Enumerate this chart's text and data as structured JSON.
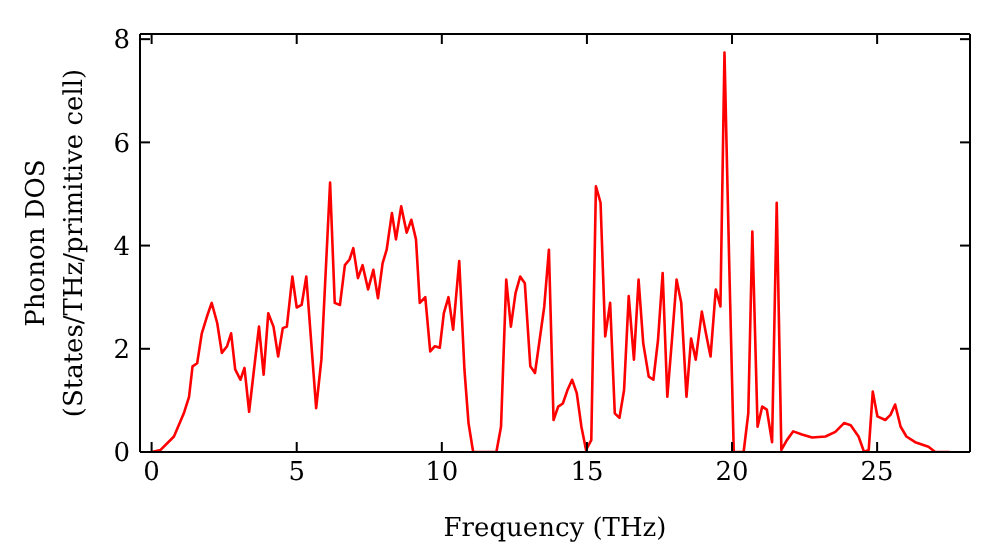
{
  "chart_data": {
    "type": "line",
    "xlabel": "Frequency (THz)",
    "ylabel": "Phonon DOS\n(States/THz/primitive cell)",
    "x": [
      0,
      0.31,
      0.77,
      1.11,
      1.29,
      1.41,
      1.57,
      1.73,
      1.91,
      2.07,
      2.26,
      2.42,
      2.6,
      2.74,
      2.88,
      3.06,
      3.2,
      3.36,
      3.7,
      3.86,
      4.02,
      4.2,
      4.36,
      4.52,
      4.66,
      4.85,
      5.0,
      5.17,
      5.33,
      5.67,
      5.85,
      6.15,
      6.31,
      6.49,
      6.66,
      6.82,
      6.95,
      7.11,
      7.27,
      7.46,
      7.64,
      7.8,
      7.96,
      8.1,
      8.28,
      8.42,
      8.6,
      8.79,
      8.95,
      9.11,
      9.24,
      9.43,
      9.6,
      9.76,
      9.93,
      10.07,
      10.23,
      10.39,
      10.6,
      10.78,
      10.92,
      11.08,
      11.88,
      12.04,
      12.22,
      12.38,
      12.54,
      12.7,
      12.86,
      13.05,
      13.21,
      13.37,
      13.53,
      13.69,
      13.85,
      14.01,
      14.17,
      14.33,
      14.49,
      14.65,
      14.81,
      14.97,
      15.15,
      15.31,
      15.47,
      15.63,
      15.8,
      15.96,
      16.12,
      16.28,
      16.44,
      16.62,
      16.78,
      16.94,
      17.13,
      17.29,
      17.45,
      17.61,
      17.77,
      17.93,
      18.09,
      18.25,
      18.43,
      18.59,
      18.75,
      18.96,
      19.1,
      19.26,
      19.44,
      19.6,
      19.74,
      19.9,
      20.06,
      20.4,
      20.56,
      20.7,
      20.88,
      21.04,
      21.2,
      21.38,
      21.54,
      21.7,
      21.89,
      22.11,
      22.41,
      22.76,
      23.22,
      23.56,
      23.86,
      24.09,
      24.36,
      24.55,
      24.71,
      24.85,
      25.01,
      25.28,
      25.46,
      25.62,
      25.81,
      26.01,
      26.31,
      26.77,
      27.0,
      27.5
    ],
    "series": [
      {
        "color": "#ff0000",
        "values": [
          0,
          0.04,
          0.3,
          0.75,
          1.07,
          1.66,
          1.72,
          2.3,
          2.63,
          2.89,
          2.5,
          1.92,
          2.05,
          2.3,
          1.6,
          1.4,
          1.63,
          0.78,
          2.43,
          1.5,
          2.69,
          2.43,
          1.85,
          2.4,
          2.43,
          3.4,
          2.8,
          2.85,
          3.4,
          0.85,
          1.79,
          5.22,
          2.89,
          2.85,
          3.62,
          3.73,
          3.95,
          3.37,
          3.62,
          3.15,
          3.53,
          2.98,
          3.66,
          3.92,
          4.63,
          4.12,
          4.76,
          4.25,
          4.5,
          4.12,
          2.89,
          3.0,
          1.95,
          2.05,
          2.02,
          2.69,
          3.0,
          2.37,
          3.7,
          1.59,
          0.56,
          0,
          0,
          0.49,
          3.34,
          2.43,
          3.08,
          3.4,
          3.27,
          1.66,
          1.53,
          2.17,
          2.82,
          3.92,
          0.62,
          0.88,
          0.94,
          1.2,
          1.4,
          1.14,
          0.49,
          0.04,
          0.23,
          5.15,
          4.83,
          2.24,
          2.89,
          0.75,
          0.66,
          1.2,
          3.02,
          1.79,
          3.34,
          2.11,
          1.46,
          1.4,
          2.17,
          3.47,
          1.07,
          2.17,
          3.34,
          2.89,
          1.07,
          2.2,
          1.79,
          2.72,
          2.3,
          1.85,
          3.15,
          2.82,
          7.74,
          3.73,
          0,
          0,
          0.75,
          4.27,
          0.49,
          0.88,
          0.82,
          0.19,
          4.83,
          0.04,
          0.23,
          0.4,
          0.34,
          0.28,
          0.3,
          0.39,
          0.56,
          0.52,
          0.3,
          0,
          0.04,
          1.17,
          0.69,
          0.62,
          0.72,
          0.92,
          0.49,
          0.3,
          0.19,
          0.1,
          0,
          0
        ]
      }
    ],
    "xlim": [
      -0.4,
      28.2
    ],
    "xticks": [
      0,
      5,
      10,
      15,
      20,
      25
    ],
    "ylim": [
      0,
      8.1
    ],
    "yticks": [
      0,
      2,
      4,
      6,
      8
    ],
    "marker": "none",
    "line_style": "solid"
  }
}
